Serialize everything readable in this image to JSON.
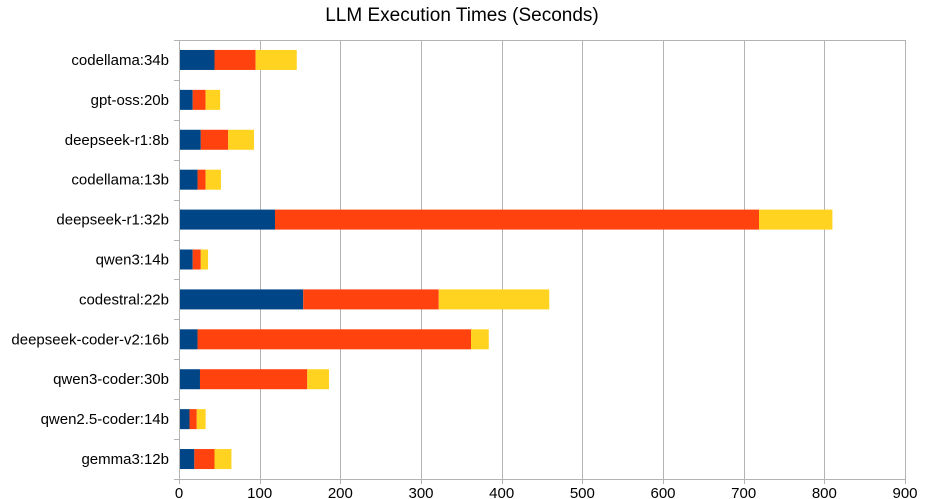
{
  "chart_data": {
    "type": "bar",
    "orientation": "horizontal",
    "stacked": true,
    "title": "LLM Execution Times (Seconds)",
    "xlabel": "",
    "ylabel": "",
    "xlim": [
      0,
      900
    ],
    "x_ticks": [
      0,
      100,
      200,
      300,
      400,
      500,
      600,
      700,
      800,
      900
    ],
    "grid": "vertical",
    "legend": "none",
    "categories": [
      "codellama:34b",
      "gpt-oss:20b",
      "deepseek-r1:8b",
      "codellama:13b",
      "deepseek-r1:32b",
      "qwen3:14b",
      "codestral:22b",
      "deepseek-coder-v2:16b",
      "qwen3-coder:30b",
      "qwen2.5-coder:14b",
      "gemma3:12b"
    ],
    "series": [
      {
        "color": "#004586",
        "values": [
          44,
          17,
          27,
          23,
          119,
          17,
          154,
          23,
          26,
          13,
          19
        ]
      },
      {
        "color": "#ff420e",
        "values": [
          51,
          16,
          34,
          10,
          600,
          10,
          168,
          339,
          133,
          9,
          25
        ]
      },
      {
        "color": "#ffd320",
        "values": [
          51,
          18,
          32,
          19,
          91,
          9,
          137,
          22,
          27,
          11,
          21
        ]
      }
    ]
  }
}
